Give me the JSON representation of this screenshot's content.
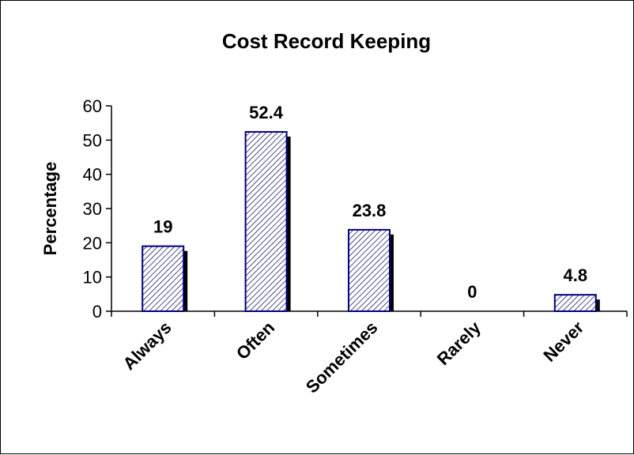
{
  "chart_data": {
    "type": "bar",
    "title": "Cost Record Keeping",
    "xlabel": "",
    "ylabel": "Percentage",
    "categories": [
      "Always",
      "Often",
      "Sometimes",
      "Rarely",
      "Never"
    ],
    "values": [
      19,
      52.4,
      23.8,
      0,
      4.8
    ],
    "data_labels": [
      "19",
      "52.4",
      "23.8",
      "0",
      "4.8"
    ],
    "ylim": [
      0,
      60
    ],
    "yticks": [
      0,
      10,
      20,
      30,
      40,
      50,
      60
    ],
    "grid": false,
    "legend": "none",
    "colors": {
      "bar_fill": "#ffffff",
      "bar_hatch": "#1f1f6e",
      "bar_border": "#000080",
      "bar_shadow": "#000000",
      "axis": "#000000"
    }
  }
}
